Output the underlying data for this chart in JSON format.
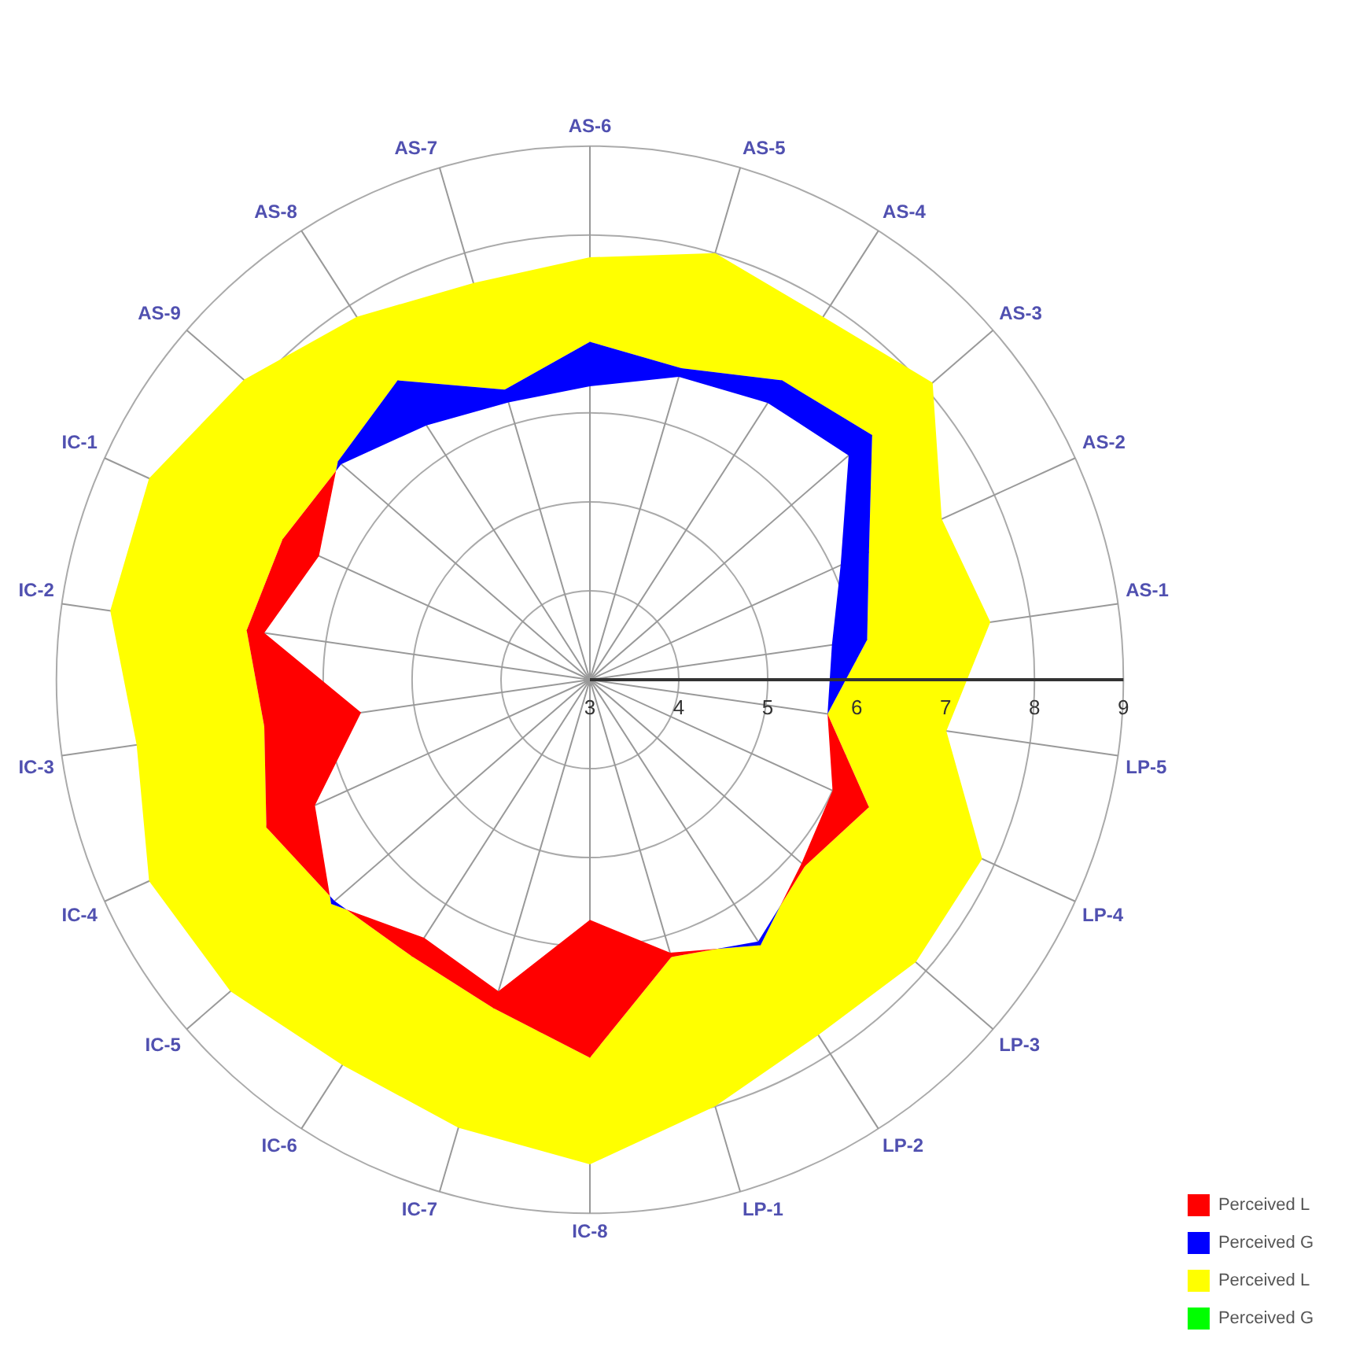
{
  "chart_data": {
    "type": "radar",
    "categories": [
      "AS-6",
      "AS-5",
      "AS-4",
      "AS-3",
      "AS-2",
      "AS-1",
      "LP-5",
      "LP-4",
      "LP-3",
      "LP-2",
      "LP-1",
      "IC-8",
      "IC-7",
      "IC-6",
      "IC-5",
      "IC-4",
      "IC-3",
      "IC-2",
      "IC-1",
      "AS-9",
      "AS-8",
      "AS-7"
    ],
    "ylim": [
      3,
      9
    ],
    "yticks": [
      3,
      4,
      5,
      6,
      7,
      8,
      9
    ],
    "grid": true,
    "legend": "bottom right",
    "marker": "none",
    "series": [
      {
        "name": "Perceived L",
        "color": "#ff0000",
        "values": [
          6.3,
          6.55,
          6.7,
          6.85,
          6.1,
          5.75,
          5.7,
          6.45,
          6.2,
          6.5,
          6.25,
          7.25,
          6.85,
          6.7,
          6.8,
          7.0,
          6.7,
          6.9,
          6.8,
          6.7,
          6.4,
          6.25
        ]
      },
      {
        "name": "Perceived G",
        "color": "#0000ff",
        "values": [
          6.8,
          6.65,
          7.0,
          7.2,
          6.45,
          6.15,
          5.7,
          6.0,
          6.15,
          6.55,
          6.2,
          5.7,
          6.65,
          6.45,
          6.85,
          6.4,
          5.6,
          6.7,
          6.35,
          6.75,
          7.0,
          6.4
        ]
      },
      {
        "name": "Perceived L",
        "color": "#ffff00",
        "values": [
          7.75,
          8.0,
          7.85,
          8.1,
          7.35,
          7.55,
          7.05,
          7.85,
          7.85,
          7.75,
          8.0,
          8.45,
          8.25,
          8.15,
          8.35,
          8.45,
          8.15,
          8.45,
          8.45,
          8.15,
          7.85,
          7.65
        ]
      },
      {
        "name": "Perceived G",
        "color": "#00ff00",
        "values": [
          null,
          null,
          null,
          null,
          null,
          null,
          null,
          null,
          null,
          null,
          null,
          null,
          null,
          null,
          null,
          null,
          null,
          null,
          null,
          null,
          null,
          null
        ]
      }
    ]
  }
}
